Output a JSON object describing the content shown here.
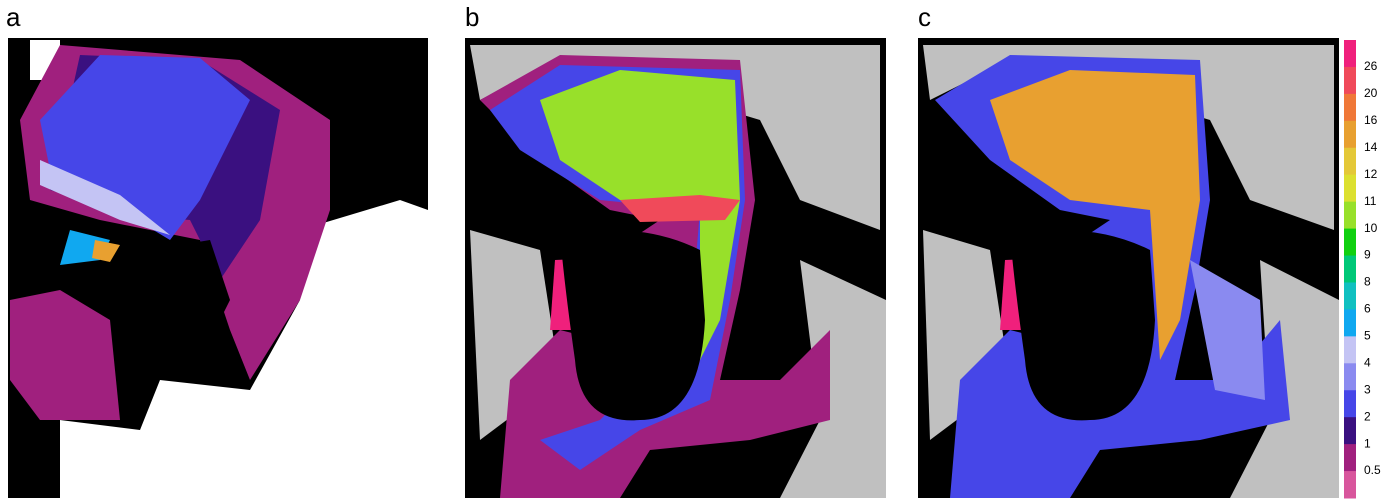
{
  "panels": [
    {
      "label": "a"
    },
    {
      "label": "b"
    },
    {
      "label": "c"
    }
  ],
  "colorbar": {
    "labels": [
      "26",
      "20",
      "16",
      "14",
      "12",
      "11",
      "10",
      "9",
      "8",
      "6",
      "5",
      "4",
      "3",
      "2",
      "1",
      "0.5"
    ],
    "colors": [
      "#f0207c",
      "#f04a5a",
      "#f07838",
      "#e8a030",
      "#e4c838",
      "#dce030",
      "#98e02a",
      "#10d010",
      "#00c878",
      "#10c0c0",
      "#10a8f0",
      "#c4c4f4",
      "#8a8af0",
      "#4646e8",
      "#3a1080",
      "#a0207e",
      "#d8559c"
    ]
  }
}
